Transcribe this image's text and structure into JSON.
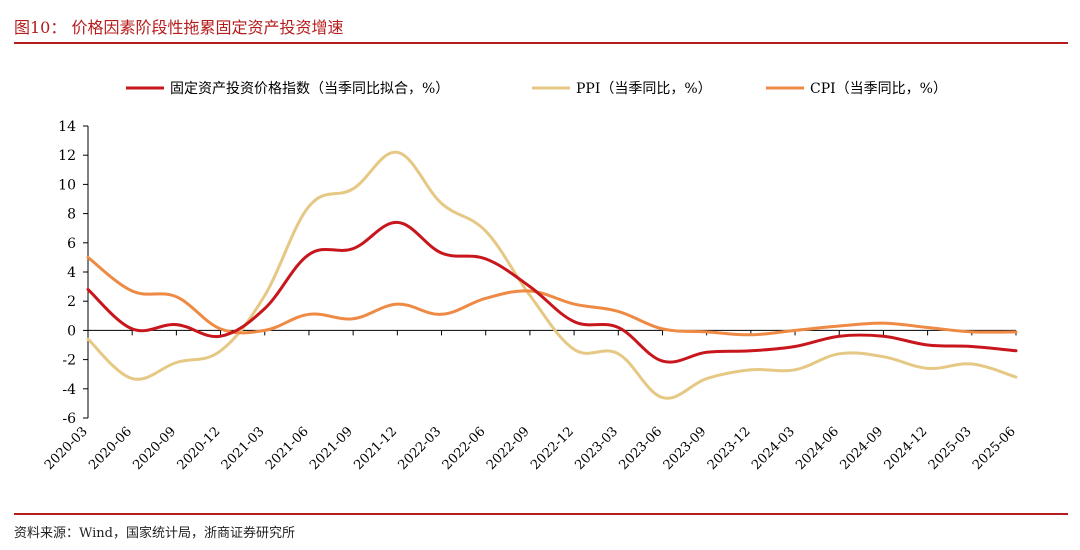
{
  "figure": {
    "title": "图10：  价格因素阶段性拖累固定资产投资增速",
    "source": "资料来源：Wind，国家统计局，浙商证券研究所"
  },
  "chart_data": {
    "type": "line",
    "title": "价格因素阶段性拖累固定资产投资增速",
    "xlabel": "",
    "ylabel": "",
    "ylim": [
      -6,
      14
    ],
    "yticks": [
      14,
      12,
      10,
      8,
      6,
      4,
      2,
      0,
      -2,
      -4,
      -6
    ],
    "legend_position": "top",
    "x_tick_labels": [
      "2020-03",
      "2020-06",
      "2020-09",
      "2020-12",
      "2021-03",
      "2021-06",
      "2021-09",
      "2021-12",
      "2022-03",
      "2022-06",
      "2022-09",
      "2022-12",
      "2023-03",
      "2023-06",
      "2023-09",
      "2023-12",
      "2024-03",
      "2024-06",
      "2024-09",
      "2024-12",
      "2025-03",
      "2025-06"
    ],
    "series": [
      {
        "name": "固定资产投资价格指数（当季同比拟合，%）",
        "color": "#c8161d",
        "values": [
          2.8,
          0.1,
          0.4,
          -0.4,
          1.5,
          5.2,
          5.6,
          7.4,
          5.3,
          4.9,
          3.0,
          0.6,
          0.2,
          -2.1,
          -1.5,
          -1.4,
          -1.1,
          -0.4,
          -0.4,
          -1.0,
          -1.1,
          -1.4
        ]
      },
      {
        "name": "PPI（当季同比，%）",
        "color": "#e6c885",
        "values": [
          -0.6,
          -3.3,
          -2.2,
          -1.4,
          2.4,
          8.5,
          9.7,
          12.2,
          8.7,
          6.8,
          2.4,
          -1.3,
          -1.6,
          -4.6,
          -3.3,
          -2.7,
          -2.7,
          -1.6,
          -1.8,
          -2.6,
          -2.3,
          -3.2
        ]
      },
      {
        "name": "CPI（当季同比，%）",
        "color": "#ee8a44",
        "values": [
          5.0,
          2.7,
          2.3,
          0.1,
          0.0,
          1.1,
          0.8,
          1.8,
          1.1,
          2.2,
          2.7,
          1.8,
          1.3,
          0.1,
          -0.1,
          -0.3,
          0.0,
          0.3,
          0.5,
          0.2,
          -0.1,
          -0.1
        ]
      }
    ]
  }
}
